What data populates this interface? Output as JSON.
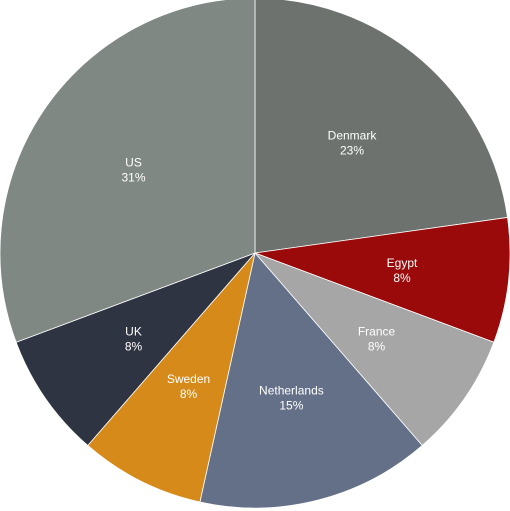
{
  "chart_data": {
    "type": "pie",
    "title": "",
    "legend": "none",
    "slices": [
      {
        "label": "Denmark",
        "value": 23,
        "display": "23%",
        "color": "#6d726f"
      },
      {
        "label": "Egypt",
        "value": 8,
        "display": "8%",
        "color": "#9b0a0a"
      },
      {
        "label": "France",
        "value": 8,
        "display": "8%",
        "color": "#a6a6a6"
      },
      {
        "label": "Netherlands",
        "value": 15,
        "display": "15%",
        "color": "#637088"
      },
      {
        "label": "Sweden",
        "value": 8,
        "display": "8%",
        "color": "#d58a1a"
      },
      {
        "label": "UK",
        "value": 8,
        "display": "8%",
        "color": "#2f3442"
      },
      {
        "label": "US",
        "value": 31,
        "display": "31%",
        "color": "#7f8883"
      }
    ]
  }
}
